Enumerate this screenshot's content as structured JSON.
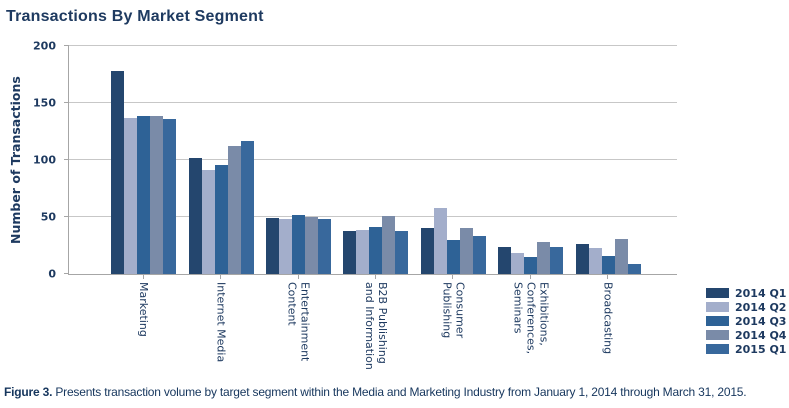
{
  "title": "Transactions By Market Segment",
  "caption": {
    "label": "Figure 3.",
    "text": " Presents transaction volume by target segment within the Media and Marketing Industry from January 1, 2014 through March 31, 2015."
  },
  "colors": {
    "text_navy": "#1E3A60",
    "gridline": "#C7C7C7",
    "axis_line": "#A6A6A6"
  },
  "chart_data": {
    "type": "bar",
    "title": "Transactions By Market Segment",
    "ylabel": "Number of Transactions",
    "xlabel": "",
    "ylim": [
      0,
      200
    ],
    "yticks": [
      0,
      50,
      100,
      150,
      200
    ],
    "grid": "horizontal",
    "legend_position": "bottom-right",
    "categories": [
      "Marketing",
      "Internet Media",
      "Entertainment\nContent",
      "B2B Publishing\nand Information",
      "Consumer\nPublishing",
      "Exhibitions,\nConferences,\nSeminars",
      "Broadcasting"
    ],
    "series": [
      {
        "name": "2014 Q1",
        "color": "#24466E",
        "values": [
          178,
          102,
          49,
          38,
          40,
          24,
          26
        ]
      },
      {
        "name": "2014 Q2",
        "color": "#A3AECB",
        "values": [
          137,
          91,
          48,
          39,
          58,
          18,
          23
        ]
      },
      {
        "name": "2014 Q3",
        "color": "#2E6296",
        "values": [
          139,
          96,
          52,
          41,
          30,
          15,
          16
        ]
      },
      {
        "name": "2014 Q4",
        "color": "#7A8BA8",
        "values": [
          139,
          112,
          50,
          51,
          40,
          28,
          31
        ]
      },
      {
        "name": "2015 Q1",
        "color": "#38689C",
        "values": [
          136,
          117,
          48,
          38,
          33,
          24,
          9
        ]
      }
    ]
  }
}
